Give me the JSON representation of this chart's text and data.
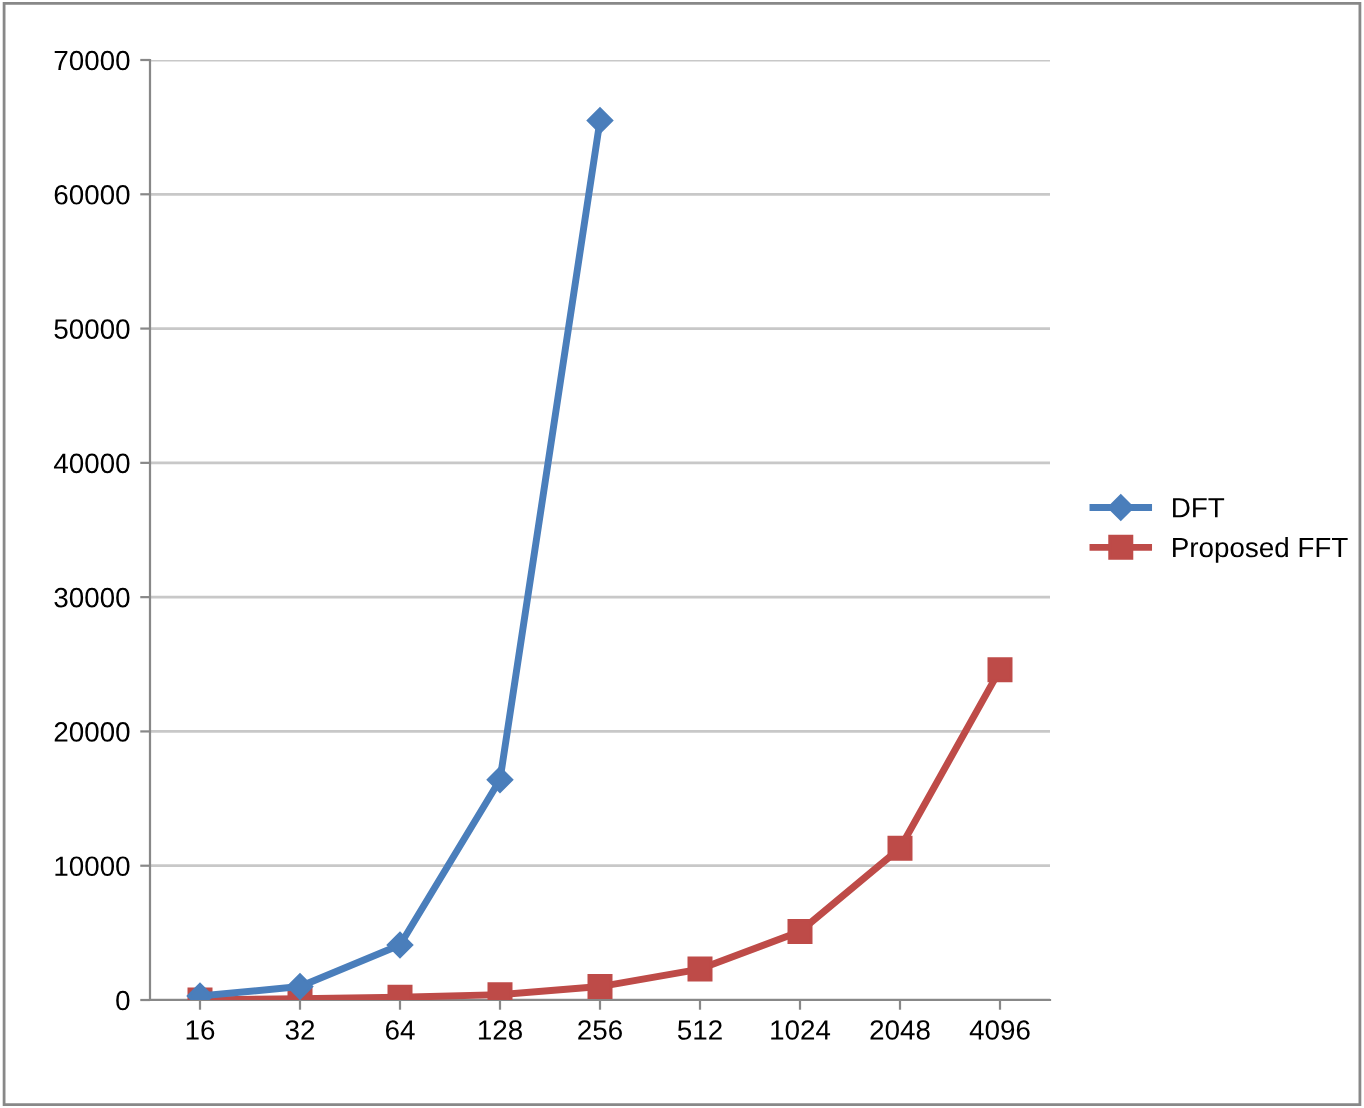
{
  "chart_data": {
    "type": "line",
    "categories": [
      "16",
      "32",
      "64",
      "128",
      "256",
      "512",
      "1024",
      "2048",
      "4096"
    ],
    "series": [
      {
        "name": "DFT",
        "color": "#4a7ebb",
        "marker": "diamond",
        "values": [
          300,
          1000,
          4100,
          16400,
          65500,
          null,
          null,
          null,
          null
        ]
      },
      {
        "name": "Proposed FFT",
        "color": "#be4b48",
        "marker": "square",
        "values": [
          0,
          100,
          200,
          400,
          1000,
          2300,
          5100,
          11300,
          24600
        ]
      }
    ],
    "ylim": [
      0,
      70000
    ],
    "yticks": [
      0,
      10000,
      20000,
      30000,
      40000,
      50000,
      60000,
      70000
    ],
    "grid": "y",
    "legend": "right",
    "line_style": "solid"
  }
}
